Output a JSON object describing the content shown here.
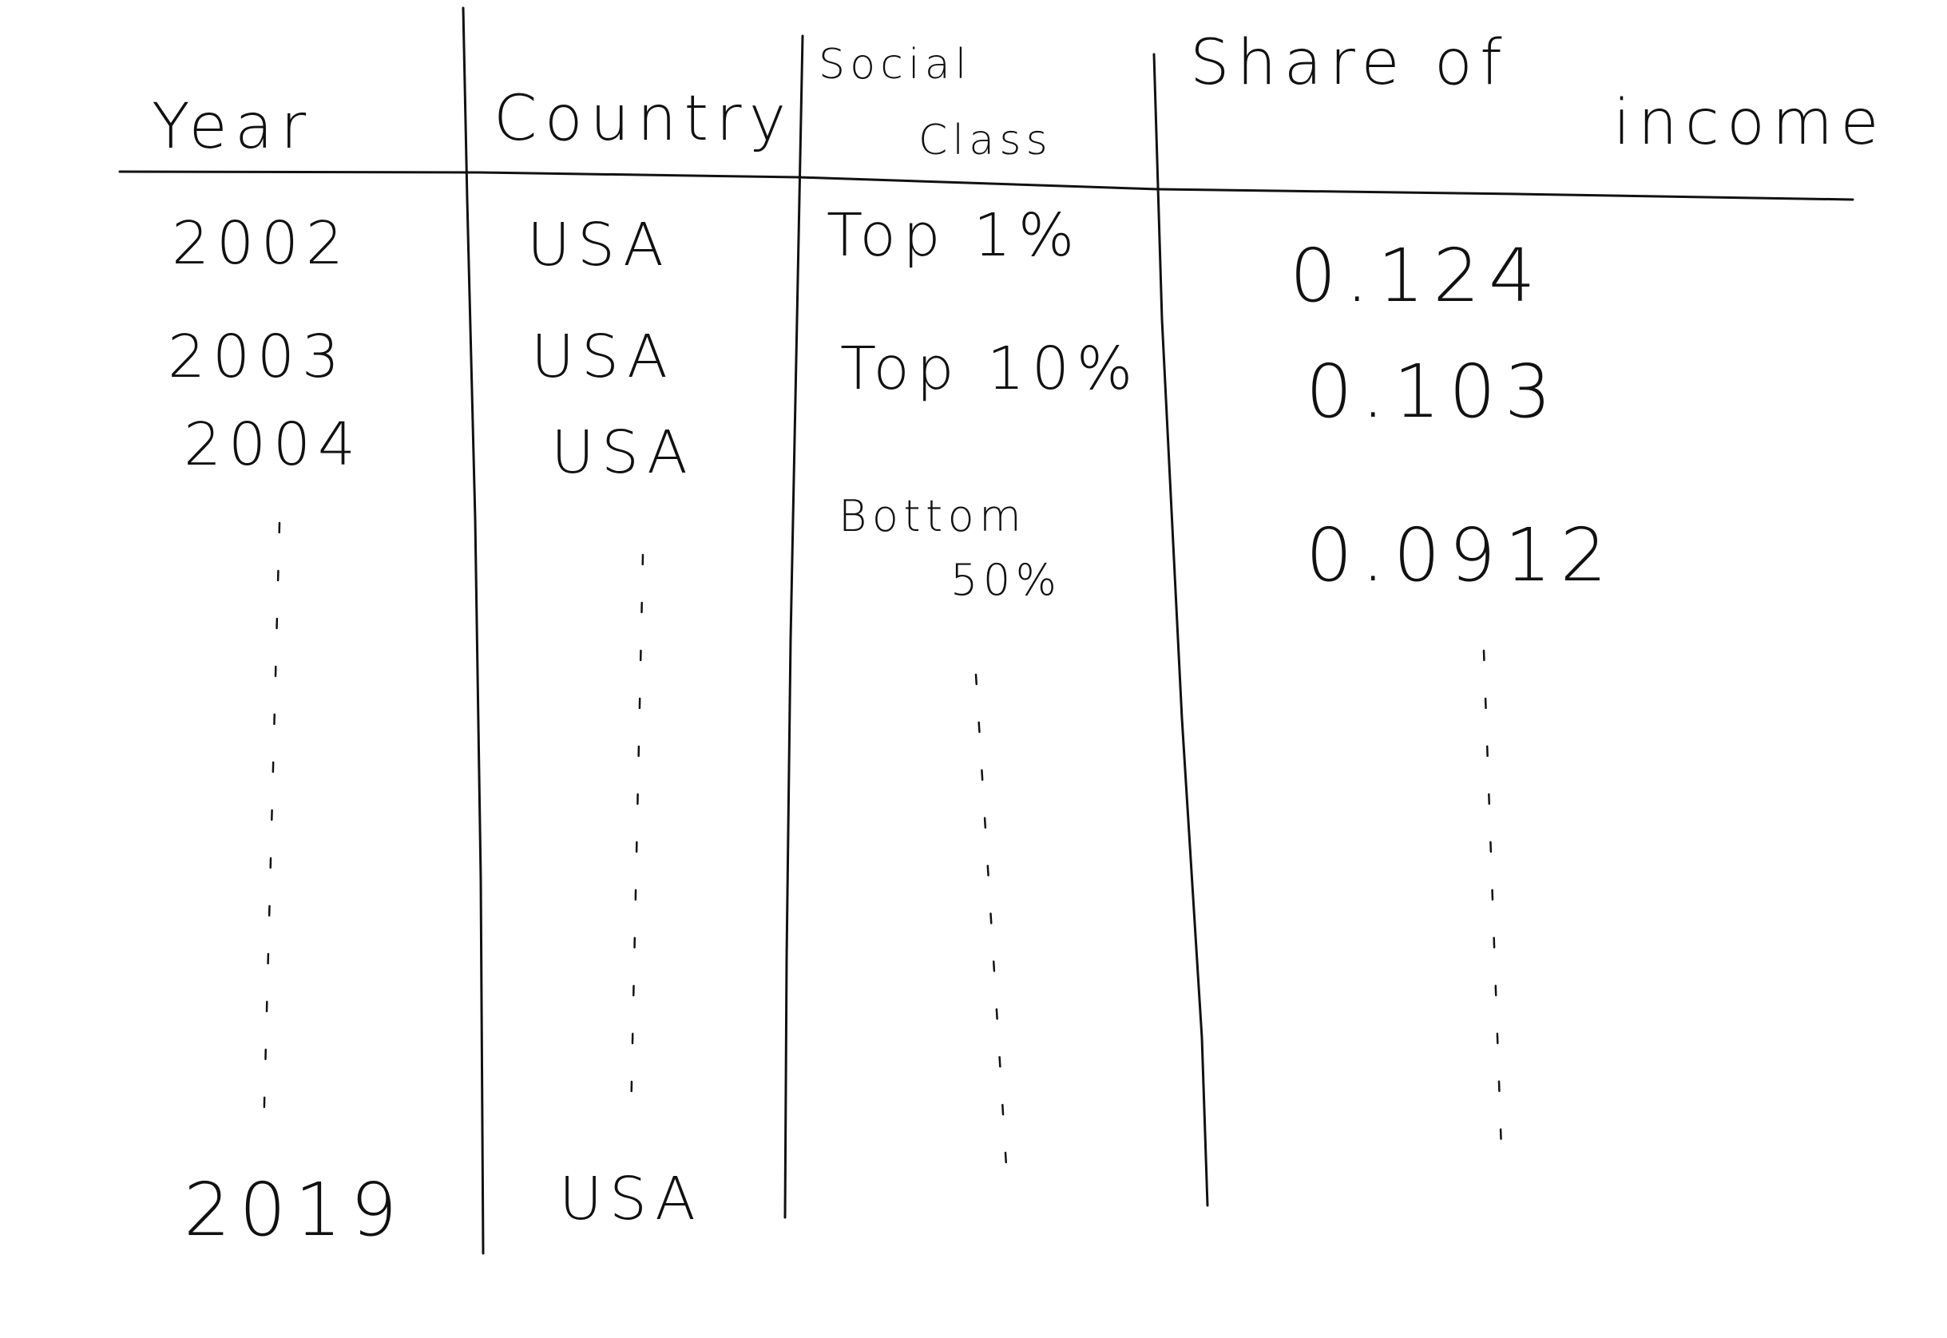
{
  "table": {
    "headers": {
      "year": "Year",
      "country": "Country",
      "social_class_line1": "Social",
      "social_class_line2": "Class",
      "share_line1": "Share of",
      "share_line2": "income"
    },
    "rows": [
      {
        "year": "2002",
        "country": "USA",
        "social_class": "Top 1%",
        "share": "0.124"
      },
      {
        "year": "2003",
        "country": "USA",
        "social_class": "Top 10%",
        "share": "0.103"
      },
      {
        "year": "2004",
        "country": "USA",
        "social_class_line1": "Bottom",
        "social_class_line2": "50%",
        "share": "0.0912"
      }
    ],
    "last_row": {
      "year": "2019",
      "country": "USA"
    }
  }
}
